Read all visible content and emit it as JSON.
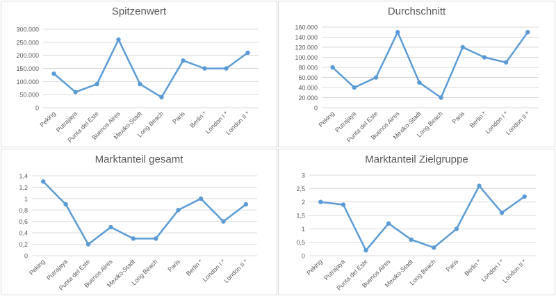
{
  "colors": {
    "series": "#5b9bd5",
    "grid": "#d9d9d9",
    "axis_text": "#595959",
    "title": "#595959"
  },
  "chart_data": [
    {
      "type": "line",
      "title": "Spitzenwert",
      "categories": [
        "Peking",
        "Putrajaya",
        "Punta del Este",
        "Buenos Aires",
        "Mexiko-Stadt",
        "Long Beach",
        "Paris",
        "Berlin *",
        "London I *",
        "London II *"
      ],
      "values": [
        130000,
        60000,
        90000,
        260000,
        90000,
        40000,
        180000,
        150000,
        150000,
        210000
      ],
      "ylim": [
        0,
        300000
      ],
      "ytick_step": 50000,
      "ytick_labels": [
        "0",
        "50.000",
        "100.000",
        "150.000",
        "200.000",
        "250.000",
        "300.000"
      ],
      "grid": true,
      "legend": "none"
    },
    {
      "type": "line",
      "title": "Durchschnitt",
      "categories": [
        "Peking",
        "Putrajaya",
        "Punta del Este",
        "Buenos Aires",
        "Mexiko-Stadt",
        "Long Beach",
        "Paris",
        "Berlin *",
        "London I *",
        "London II *"
      ],
      "values": [
        80000,
        40000,
        60000,
        150000,
        50000,
        20000,
        120000,
        100000,
        90000,
        150000
      ],
      "ylim": [
        0,
        160000
      ],
      "ytick_step": 20000,
      "ytick_labels": [
        "0",
        "20.000",
        "40.000",
        "60.000",
        "80.000",
        "100.000",
        "120.000",
        "140.000",
        "160.000"
      ],
      "grid": true,
      "legend": "none"
    },
    {
      "type": "line",
      "title": "Marktanteil gesamt",
      "categories": [
        "Peking",
        "Putrajaya",
        "Punta del Este",
        "Buenos Aires",
        "Mexiko-Stadt",
        "Long Beach",
        "Paris",
        "Berlin *",
        "London I *",
        "London II *"
      ],
      "values": [
        1.3,
        0.9,
        0.2,
        0.5,
        0.3,
        0.3,
        0.8,
        1.0,
        0.6,
        0.9
      ],
      "ylim": [
        0,
        1.4
      ],
      "ytick_step": 0.2,
      "ytick_labels": [
        "0",
        "0,2",
        "0,4",
        "0,6",
        "0,8",
        "1",
        "1,2",
        "1,4"
      ],
      "grid": true,
      "legend": "none"
    },
    {
      "type": "line",
      "title": "Marktanteil Zielgruppe",
      "categories": [
        "Peking",
        "Putrajaya",
        "Punta del Este",
        "Buenos Aires",
        "Mexiko-Stadt",
        "Long Beach",
        "Paris",
        "Berlin *",
        "London I *",
        "London II *"
      ],
      "values": [
        2.0,
        1.9,
        0.2,
        1.2,
        0.6,
        0.3,
        1.0,
        2.6,
        1.6,
        2.2
      ],
      "ylim": [
        0,
        3
      ],
      "ytick_step": 0.5,
      "ytick_labels": [
        "0",
        "0,5",
        "1",
        "1,5",
        "2",
        "2,5",
        "3"
      ],
      "grid": true,
      "legend": "none"
    }
  ]
}
